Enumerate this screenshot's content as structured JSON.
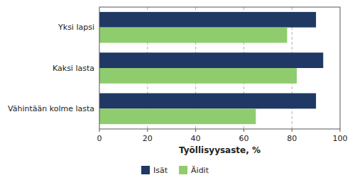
{
  "chart_data": {
    "type": "bar",
    "orientation": "horizontal",
    "categories": [
      "Yksi lapsi",
      "Kaksi lasta",
      "Vähintään kolme lasta"
    ],
    "series": [
      {
        "name": "Isät",
        "color": "#1f3864",
        "values": [
          90,
          93,
          90
        ]
      },
      {
        "name": "Äidit",
        "color": "#8fcc6e",
        "values": [
          78,
          82,
          65
        ]
      }
    ],
    "xlabel": "Työllisyysaste, %",
    "xlim": [
      0,
      100
    ],
    "xticks": [
      0,
      20,
      40,
      60,
      80,
      100
    ],
    "grid": true,
    "legend": "bottom"
  }
}
